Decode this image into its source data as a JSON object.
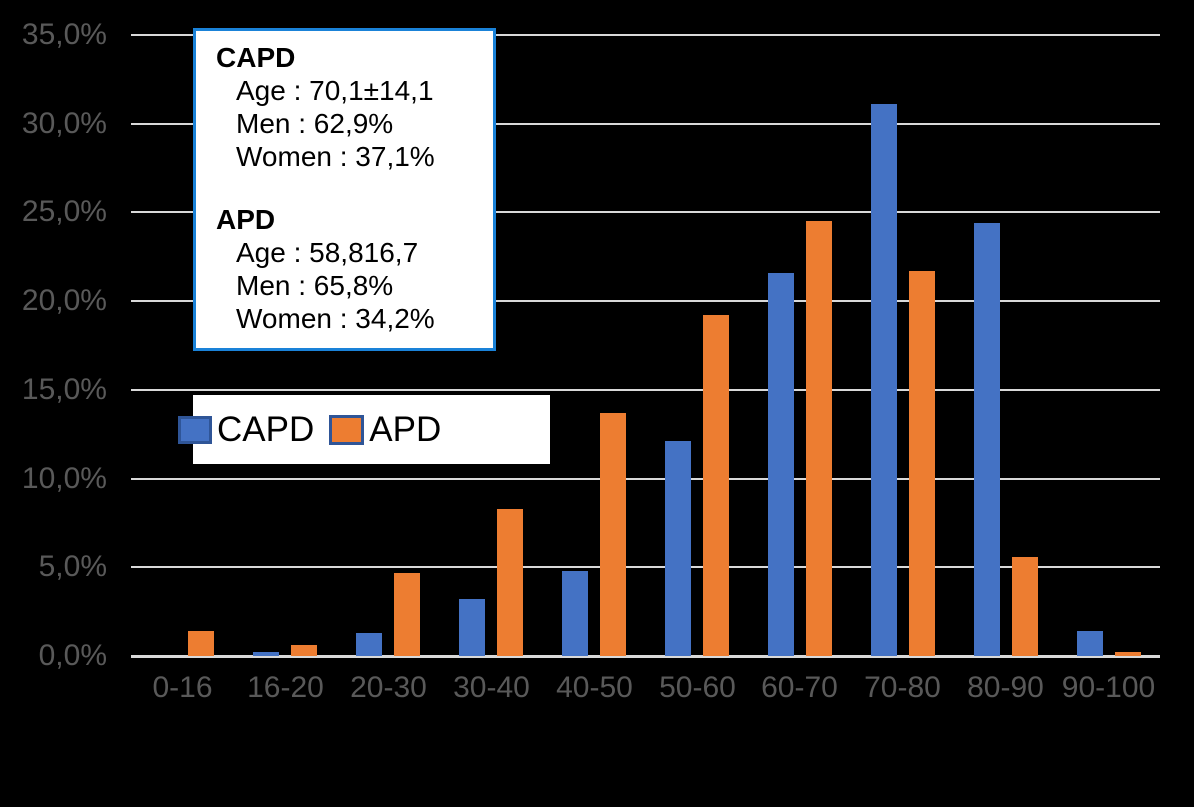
{
  "page": {
    "background": "#000000"
  },
  "colors": {
    "capd": "#4472C4",
    "apd": "#ED7D31",
    "gridline": "#D9D9D9",
    "axis_label": "#595959",
    "box_border": "#1A82D8",
    "swatch_border": "#2F5597",
    "box_background": "#FFFFFF",
    "text": "#000000"
  },
  "chart_data": {
    "type": "bar",
    "title": "",
    "xlabel": "",
    "ylabel": "",
    "categories": [
      "0-16",
      "16-20",
      "20-30",
      "30-40",
      "40-50",
      "50-60",
      "60-70",
      "70-80",
      "80-90",
      "90-100"
    ],
    "series": [
      {
        "name": "CAPD",
        "color": "#4472C4",
        "values": [
          0.0,
          0.2,
          1.3,
          3.2,
          4.8,
          12.1,
          21.6,
          31.1,
          24.4,
          1.4
        ]
      },
      {
        "name": "APD",
        "color": "#ED7D31",
        "values": [
          1.4,
          0.6,
          4.7,
          8.3,
          13.7,
          19.2,
          24.5,
          21.7,
          5.6,
          0.2
        ]
      }
    ],
    "ylim": [
      0,
      35
    ],
    "ytick_step": 5,
    "yticklabels": [
      "35,0%",
      "30,0%",
      "25,0%",
      "20,0%",
      "15,0%",
      "10,0%",
      "5,0%",
      "0,0%"
    ],
    "grid": true,
    "value_format": "percent_comma_decimal",
    "legend_position": "center-left-overlay"
  },
  "annotation_box": {
    "groups": [
      {
        "title": "CAPD",
        "lines": [
          "Age : 70,1±14,1",
          "Men : 62,9%",
          "Women : 37,1%"
        ]
      },
      {
        "title": "APD",
        "lines": [
          "Age : 58,816,7",
          "Men : 65,8%",
          "Women : 34,2%"
        ]
      }
    ]
  },
  "legend": {
    "items": [
      {
        "label": "CAPD",
        "color": "#4472C4",
        "border": "#2F5597"
      },
      {
        "label": "APD",
        "color": "#ED7D31",
        "border": "#2F5597"
      }
    ]
  }
}
